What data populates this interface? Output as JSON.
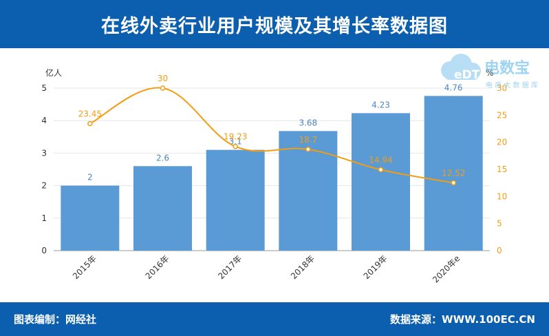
{
  "header": {
    "title": "在线外卖行业用户规模及其增长率数据图"
  },
  "footer": {
    "left": "图表编制：网经社",
    "right": "数据来源：WWW.100EC.CN"
  },
  "watermark": {
    "logo": "eDT 电数宝",
    "sub": "电商大数据库"
  },
  "colors": {
    "bar": "#5b9bd5",
    "line": "#f39c12",
    "bar_label": "#4a86c5",
    "header_bg": "#0b5fae",
    "axis_text": "#333333"
  },
  "chart_data": {
    "type": "bar",
    "title": "在线外卖行业用户规模及其增长率数据图",
    "categories": [
      "2015年",
      "2016年",
      "2017年",
      "2018年",
      "2019年",
      "2020年e"
    ],
    "series": [
      {
        "type": "bar",
        "axis": "left",
        "values": [
          2,
          2.6,
          3.1,
          3.68,
          4.23,
          4.76
        ]
      },
      {
        "type": "line",
        "axis": "right",
        "values": [
          23.45,
          30,
          19.23,
          18.7,
          14.94,
          12.52
        ]
      }
    ],
    "y_left": {
      "label": "亿人",
      "ylim": [
        0,
        5
      ],
      "ticks": [
        0,
        1,
        2,
        3,
        4,
        5
      ]
    },
    "y_right": {
      "label": "%",
      "ylim": [
        0,
        30
      ],
      "ticks": [
        0,
        5,
        10,
        15,
        20,
        25,
        30
      ]
    },
    "grid": true
  }
}
